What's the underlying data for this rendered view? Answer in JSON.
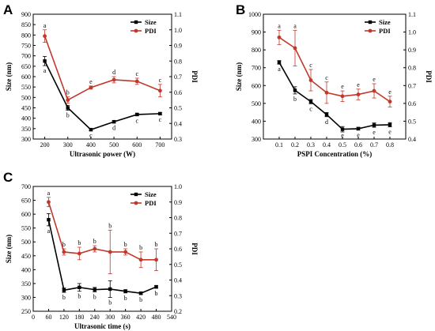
{
  "chart_data": [
    {
      "type": "line",
      "panel": "A",
      "xlabel": "Ultrasonic power (W)",
      "ylabel": "Size (nm)",
      "y2label": "PDI",
      "x": [
        200,
        300,
        400,
        500,
        600,
        700
      ],
      "xlim": [
        150,
        750
      ],
      "xticks": [
        200,
        300,
        400,
        500,
        600,
        700
      ],
      "ylim": [
        300,
        900
      ],
      "yticks": [
        300,
        350,
        400,
        450,
        500,
        550,
        600,
        650,
        700,
        750,
        800,
        850,
        900
      ],
      "y2lim": [
        0.3,
        1.1
      ],
      "y2ticks": [
        "0.3",
        "0.4",
        "0.5",
        "0.6",
        "0.7",
        "0.8",
        "0.9",
        "1.0",
        "1.1"
      ],
      "legend_position": "top-right",
      "series": [
        {
          "name": "Size",
          "axis": "left",
          "color": "#000000",
          "marker": "square",
          "values": [
            675,
            450,
            345,
            383,
            418,
            422
          ],
          "errors": [
            22,
            12,
            5,
            6,
            6,
            5
          ],
          "letters": [
            "a",
            "b",
            "c",
            "d",
            "c",
            "c"
          ]
        },
        {
          "name": "PDI",
          "axis": "right",
          "color": "#c0392b",
          "marker": "circle",
          "values": [
            0.96,
            0.55,
            0.63,
            0.68,
            0.67,
            0.61
          ],
          "errors": [
            0.04,
            0.02,
            0.01,
            0.02,
            0.02,
            0.04
          ],
          "letters": [
            "a",
            "b",
            "e",
            "d",
            "c",
            "c"
          ]
        }
      ]
    },
    {
      "type": "line",
      "panel": "B",
      "xlabel": "PSPI Concentration (%)",
      "ylabel": "Size (nm)",
      "y2label": "PDI",
      "x": [
        0.1,
        0.2,
        0.3,
        0.4,
        0.5,
        0.6,
        0.7,
        0.8
      ],
      "xlim": [
        0.0,
        0.9
      ],
      "xticks": [
        "0.1",
        "0.2",
        "0.3",
        "0.4",
        "0.5",
        "0.6",
        "0.7",
        "0.8"
      ],
      "ylim": [
        300,
        1000
      ],
      "yticks": [
        300,
        400,
        500,
        600,
        700,
        800,
        900,
        1000
      ],
      "y2lim": [
        0.4,
        1.1
      ],
      "y2ticks": [
        "0.4",
        "0.5",
        "0.6",
        "0.7",
        "0.8",
        "0.9",
        "1.0",
        "1.1"
      ],
      "legend_position": "top-right",
      "series": [
        {
          "name": "Size",
          "axis": "left",
          "color": "#000000",
          "marker": "square",
          "values": [
            730,
            573,
            510,
            437,
            355,
            358,
            378,
            380
          ],
          "errors": [
            10,
            20,
            12,
            12,
            15,
            8,
            12,
            12
          ],
          "letters": [
            "a",
            "b",
            "c",
            "d",
            "e",
            "e",
            "e",
            "e"
          ]
        },
        {
          "name": "PDI",
          "axis": "right",
          "color": "#c0392b",
          "marker": "circle",
          "values": [
            0.97,
            0.91,
            0.73,
            0.66,
            0.64,
            0.65,
            0.67,
            0.61
          ],
          "errors": [
            0.04,
            0.1,
            0.06,
            0.06,
            0.03,
            0.03,
            0.04,
            0.03
          ],
          "letters": [
            "a",
            "a",
            "c",
            "c",
            "e",
            "e",
            "e",
            "e"
          ]
        }
      ]
    },
    {
      "type": "line",
      "panel": "C",
      "xlabel": "Ultrasonic time (s)",
      "ylabel": "Size (nm)",
      "y2label": "PDI",
      "x": [
        60,
        120,
        180,
        240,
        300,
        360,
        420,
        480
      ],
      "xlim": [
        0,
        540
      ],
      "xticks": [
        0,
        60,
        120,
        180,
        240,
        300,
        360,
        420,
        480,
        540
      ],
      "ylim": [
        250,
        700
      ],
      "yticks": [
        250,
        300,
        350,
        400,
        450,
        500,
        550,
        600,
        650,
        700
      ],
      "y2lim": [
        0.2,
        1.0
      ],
      "y2ticks": [
        "0.2",
        "0.3",
        "0.4",
        "0.5",
        "0.6",
        "0.7",
        "0.8",
        "0.9",
        "1.0"
      ],
      "legend_position": "top-right",
      "series": [
        {
          "name": "Size",
          "axis": "left",
          "color": "#000000",
          "marker": "square",
          "values": [
            580,
            326,
            336,
            328,
            330,
            322,
            315,
            338
          ],
          "errors": [
            22,
            8,
            14,
            8,
            30,
            6,
            5,
            5
          ],
          "letters": [
            "a",
            "b",
            "b",
            "b",
            "b",
            "b",
            "b",
            "b"
          ]
        },
        {
          "name": "PDI",
          "axis": "right",
          "color": "#c0392b",
          "marker": "circle",
          "values": [
            0.9,
            0.58,
            0.57,
            0.6,
            0.58,
            0.58,
            0.53,
            0.53
          ],
          "errors": [
            0.03,
            0.02,
            0.04,
            0.02,
            0.14,
            0.02,
            0.05,
            0.07
          ],
          "letters": [
            "a",
            "b",
            "b",
            "b",
            "b",
            "b",
            "b",
            "b"
          ]
        }
      ]
    }
  ]
}
